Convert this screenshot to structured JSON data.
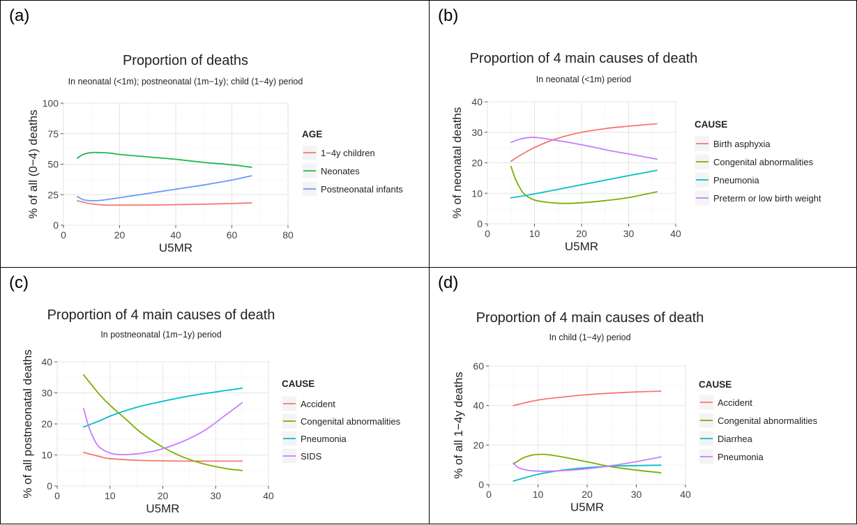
{
  "panels": [
    {
      "label": "(a)"
    },
    {
      "label": "(b)"
    },
    {
      "label": "(c)"
    },
    {
      "label": "(d)"
    }
  ],
  "chart_data": [
    {
      "type": "line",
      "title": "Proportion of deaths",
      "subtitle": "In neonatal (<1m); postneonatal (1m−1y); child (1−4y) period",
      "xlabel": "U5MR",
      "ylabel": "% of all (0−4) deaths",
      "xlim": [
        0,
        80
      ],
      "ylim": [
        0,
        100
      ],
      "xticks": [
        "0",
        "20",
        "40",
        "60",
        "80"
      ],
      "yticks": [
        "0",
        "25",
        "50",
        "75",
        "100"
      ],
      "grid": true,
      "legend_title": "AGE",
      "legend_position": "right",
      "series": [
        {
          "name": "1−4y children",
          "color": "#f8766d",
          "x": [
            5,
            10,
            15,
            20,
            30,
            40,
            50,
            60,
            67
          ],
          "y": [
            20,
            17.5,
            16.5,
            16.5,
            16.5,
            16.8,
            17.2,
            17.8,
            18.3
          ]
        },
        {
          "name": "Neonates",
          "color": "#1fb848",
          "x": [
            5,
            7,
            10,
            13,
            17,
            20,
            30,
            40,
            50,
            60,
            67
          ],
          "y": [
            55,
            58,
            59.5,
            59.5,
            59,
            58,
            56,
            54,
            51.5,
            49.5,
            47.5
          ]
        },
        {
          "name": "Postneonatal infants",
          "color": "#6699ff",
          "x": [
            5,
            7,
            10,
            13,
            17,
            20,
            30,
            40,
            50,
            60,
            67
          ],
          "y": [
            23.5,
            21,
            20,
            20.3,
            21.5,
            22.5,
            26,
            29.5,
            33,
            37,
            40.5
          ]
        }
      ]
    },
    {
      "type": "line",
      "title": "Proportion of 4 main causes of death",
      "subtitle": "In neonatal (<1m) period",
      "xlabel": "U5MR",
      "ylabel": "% of neonatal deaths",
      "xlim": [
        0,
        40
      ],
      "ylim": [
        0,
        40
      ],
      "xticks": [
        "0",
        "10",
        "20",
        "30",
        "40"
      ],
      "yticks": [
        "0",
        "10",
        "20",
        "30",
        "40"
      ],
      "grid": true,
      "legend_title": "CAUSE",
      "legend_position": "right",
      "series": [
        {
          "name": "Birth asphyxia",
          "color": "#f8766d",
          "x": [
            5,
            7,
            10,
            13,
            16,
            20,
            25,
            30,
            36
          ],
          "y": [
            20.5,
            22.5,
            25,
            27,
            28.5,
            30,
            31.2,
            32,
            32.8
          ]
        },
        {
          "name": "Congenital abnormalities",
          "color": "#7cae00",
          "x": [
            5,
            6,
            7,
            8,
            10,
            13,
            16,
            20,
            25,
            30,
            36
          ],
          "y": [
            18.8,
            14.5,
            11.5,
            9.5,
            7.8,
            7,
            6.7,
            6.9,
            7.6,
            8.6,
            10.5
          ]
        },
        {
          "name": "Pneumonia",
          "color": "#00bfc4",
          "x": [
            5,
            10,
            15,
            20,
            25,
            30,
            36
          ],
          "y": [
            8.5,
            9.8,
            11.3,
            12.8,
            14.3,
            15.8,
            17.5
          ]
        },
        {
          "name": "Preterm or low birth weight",
          "color": "#c77cff",
          "x": [
            5,
            7,
            9,
            11,
            14,
            18,
            22,
            26,
            30,
            36
          ],
          "y": [
            26.7,
            27.8,
            28.3,
            28.2,
            27.5,
            26.5,
            25.3,
            24,
            22.9,
            21.2
          ]
        }
      ]
    },
    {
      "type": "line",
      "title": "Proportion of 4 main causes of death",
      "subtitle": "In postneonatal (1m−1y) period",
      "xlabel": "U5MR",
      "ylabel": "% of all postneonatal deaths",
      "xlim": [
        0,
        40
      ],
      "ylim": [
        0,
        40
      ],
      "xticks": [
        "0",
        "10",
        "20",
        "30",
        "40"
      ],
      "yticks": [
        "0",
        "10",
        "20",
        "30",
        "40"
      ],
      "grid": true,
      "legend_title": "CAUSE",
      "legend_position": "right",
      "series": [
        {
          "name": "Accident",
          "color": "#f8766d",
          "x": [
            5,
            8,
            10,
            15,
            20,
            25,
            30,
            35
          ],
          "y": [
            10.8,
            9.5,
            8.8,
            8.3,
            8.1,
            8,
            8,
            8
          ]
        },
        {
          "name": "Congenital abnormalities",
          "color": "#7cae00",
          "x": [
            5,
            8,
            10,
            13,
            16,
            20,
            24,
            28,
            32,
            35
          ],
          "y": [
            35.8,
            29.5,
            26,
            21.5,
            17,
            12.5,
            9.2,
            7,
            5.6,
            5
          ]
        },
        {
          "name": "Pneumonia",
          "color": "#00bfc4",
          "x": [
            5,
            8,
            10,
            13,
            16,
            20,
            25,
            30,
            35
          ],
          "y": [
            19,
            21,
            22.5,
            24.3,
            25.8,
            27.3,
            29,
            30.3,
            31.5
          ]
        },
        {
          "name": "SIDS",
          "color": "#c77cff",
          "x": [
            5,
            6,
            7,
            8,
            10,
            12,
            14,
            17,
            20,
            24,
            28,
            32,
            35
          ],
          "y": [
            25,
            19,
            15,
            12.5,
            10.6,
            10.1,
            10.2,
            10.8,
            12,
            14.5,
            18,
            23,
            26.8
          ]
        }
      ]
    },
    {
      "type": "line",
      "title": "Proportion of 4 main causes of death",
      "subtitle": "In child (1−4y) period",
      "xlabel": "U5MR",
      "ylabel": "% of all 1−4y deaths",
      "xlim": [
        0,
        40
      ],
      "ylim": [
        0,
        60
      ],
      "xticks": [
        "0",
        "10",
        "20",
        "30",
        "40"
      ],
      "yticks": [
        "0",
        "20",
        "40",
        "60"
      ],
      "grid": true,
      "legend_title": "CAUSE",
      "legend_position": "right",
      "series": [
        {
          "name": "Accident",
          "color": "#f8766d",
          "x": [
            5,
            10,
            15,
            20,
            25,
            30,
            35
          ],
          "y": [
            40,
            42.8,
            44.3,
            45.5,
            46.3,
            46.9,
            47.3
          ]
        },
        {
          "name": "Congenital abnormalities",
          "color": "#7cae00",
          "x": [
            5,
            7,
            9,
            11,
            13,
            16,
            20,
            25,
            30,
            35
          ],
          "y": [
            10.5,
            13.5,
            15,
            15.3,
            14.8,
            13.5,
            11.5,
            9,
            7.3,
            6
          ]
        },
        {
          "name": "Diarrhea",
          "color": "#00bfc4",
          "x": [
            5,
            10,
            15,
            20,
            25,
            30,
            35
          ],
          "y": [
            1.8,
            5.2,
            7.3,
            8.6,
            9.3,
            9.6,
            9.8
          ]
        },
        {
          "name": "Pneumonia",
          "color": "#c77cff",
          "x": [
            5,
            6,
            8,
            10,
            13,
            16,
            20,
            25,
            30,
            35
          ],
          "y": [
            11,
            8.6,
            7.2,
            6.8,
            6.8,
            7.2,
            8,
            9.6,
            11.6,
            14
          ]
        }
      ]
    }
  ]
}
